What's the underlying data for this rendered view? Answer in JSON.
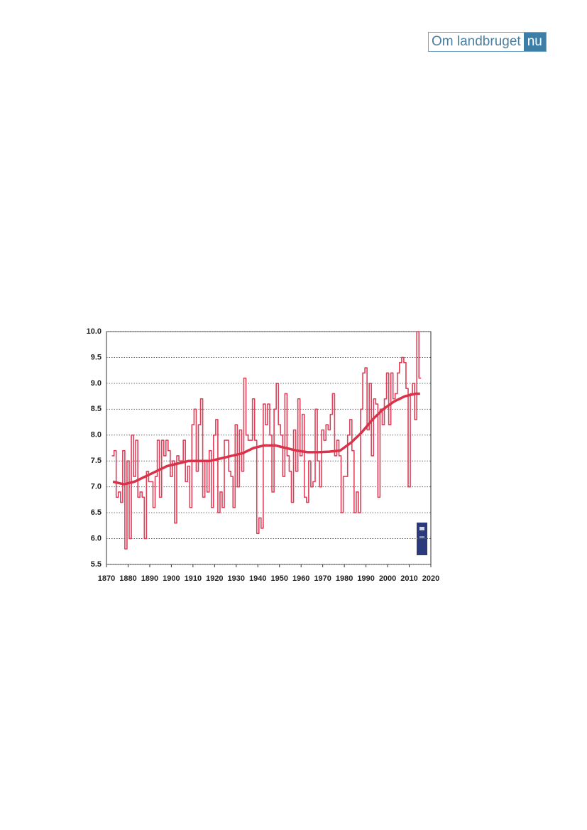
{
  "logo": {
    "text": "Om landbruget",
    "badge": "nu"
  },
  "chart_data": {
    "type": "line",
    "xlim": [
      1870,
      2020
    ],
    "xticks": [
      1870,
      1880,
      1890,
      1900,
      1910,
      1920,
      1930,
      1940,
      1950,
      1960,
      1970,
      1980,
      1990,
      2000,
      2010,
      2020
    ],
    "ylim": [
      5.5,
      10.0
    ],
    "yticks": [
      5.5,
      {
        "value": 6,
        "label": "6.0"
      },
      6.5,
      {
        "value": 7,
        "label": "7.0"
      },
      7.5,
      {
        "value": 8,
        "label": "8.0"
      },
      8.5,
      {
        "value": 9,
        "label": "9.0"
      },
      9.5,
      {
        "value": 10,
        "label": "10.0"
      }
    ],
    "grid": true,
    "series": [
      {
        "color": "#e0405a",
        "drawstyle": "steps",
        "x": [
          1873,
          1874,
          1875,
          1876,
          1877,
          1878,
          1879,
          1880,
          1881,
          1882,
          1883,
          1884,
          1885,
          1886,
          1887,
          1888,
          1889,
          1890,
          1891,
          1892,
          1893,
          1894,
          1895,
          1896,
          1897,
          1898,
          1899,
          1900,
          1901,
          1902,
          1903,
          1904,
          1905,
          1906,
          1907,
          1908,
          1909,
          1910,
          1911,
          1912,
          1913,
          1914,
          1915,
          1916,
          1917,
          1918,
          1919,
          1920,
          1921,
          1922,
          1923,
          1924,
          1925,
          1926,
          1927,
          1928,
          1929,
          1930,
          1931,
          1932,
          1933,
          1934,
          1935,
          1936,
          1937,
          1938,
          1939,
          1940,
          1941,
          1942,
          1943,
          1944,
          1945,
          1946,
          1947,
          1948,
          1949,
          1950,
          1951,
          1952,
          1953,
          1954,
          1955,
          1956,
          1957,
          1958,
          1959,
          1960,
          1961,
          1962,
          1963,
          1964,
          1965,
          1966,
          1967,
          1968,
          1969,
          1970,
          1971,
          1972,
          1973,
          1974,
          1975,
          1976,
          1977,
          1978,
          1979,
          1980,
          1981,
          1982,
          1983,
          1984,
          1985,
          1986,
          1987,
          1988,
          1989,
          1990,
          1991,
          1992,
          1993,
          1994,
          1995,
          1996,
          1997,
          1998,
          1999,
          2000,
          2001,
          2002,
          2003,
          2004,
          2005,
          2006,
          2007,
          2008,
          2009,
          2010,
          2011,
          2012,
          2013,
          2014,
          2015
        ],
        "values": [
          7.6,
          7.7,
          6.8,
          6.9,
          6.7,
          7.7,
          5.8,
          7.5,
          6.0,
          8.0,
          7.2,
          7.9,
          6.8,
          6.9,
          6.8,
          6.0,
          7.3,
          7.1,
          7.1,
          6.6,
          7.2,
          7.9,
          6.8,
          7.9,
          7.6,
          7.9,
          7.7,
          7.2,
          7.5,
          6.3,
          7.6,
          7.5,
          7.5,
          7.9,
          7.1,
          7.4,
          6.6,
          8.2,
          8.5,
          7.3,
          8.2,
          8.7,
          6.8,
          7.5,
          6.9,
          7.7,
          6.6,
          8.0,
          8.3,
          6.5,
          6.9,
          6.6,
          7.9,
          7.9,
          7.3,
          7.2,
          6.6,
          8.2,
          7.0,
          8.1,
          7.3,
          9.1,
          8.0,
          7.9,
          7.9,
          8.7,
          7.9,
          6.1,
          6.4,
          6.2,
          8.6,
          8.2,
          8.6,
          8.0,
          6.9,
          8.5,
          9.0,
          8.2,
          8.0,
          7.2,
          8.8,
          7.6,
          7.3,
          6.7,
          8.1,
          7.3,
          8.7,
          7.6,
          8.4,
          6.8,
          6.7,
          7.5,
          7.0,
          7.1,
          8.5,
          7.5,
          7.0,
          8.1,
          7.9,
          8.2,
          8.1,
          8.4,
          8.8,
          7.6,
          7.9,
          7.6,
          6.5,
          7.2,
          7.2,
          8.0,
          8.3,
          7.7,
          6.5,
          6.9,
          6.5,
          8.5,
          9.2,
          9.3,
          8.1,
          9.0,
          7.6,
          8.7,
          8.6,
          6.8,
          8.5,
          8.2,
          8.7,
          9.2,
          8.2,
          9.2,
          8.7,
          8.8,
          9.2,
          9.4,
          9.5,
          9.4,
          8.9,
          7.0,
          8.8,
          9.0,
          8.3,
          10.0,
          9.1
        ]
      },
      {
        "color": "#d8334a",
        "drawstyle": "smooth",
        "x": [
          1873,
          1878,
          1883,
          1888,
          1893,
          1898,
          1903,
          1908,
          1913,
          1918,
          1923,
          1928,
          1933,
          1938,
          1943,
          1948,
          1953,
          1958,
          1963,
          1968,
          1973,
          1978,
          1983,
          1988,
          1993,
          1998,
          2003,
          2008,
          2013,
          2015
        ],
        "values": [
          7.1,
          7.05,
          7.1,
          7.2,
          7.3,
          7.4,
          7.45,
          7.5,
          7.5,
          7.5,
          7.55,
          7.6,
          7.65,
          7.75,
          7.8,
          7.8,
          7.75,
          7.7,
          7.67,
          7.67,
          7.68,
          7.7,
          7.85,
          8.05,
          8.3,
          8.5,
          8.65,
          8.75,
          8.8,
          8.8
        ]
      }
    ]
  }
}
